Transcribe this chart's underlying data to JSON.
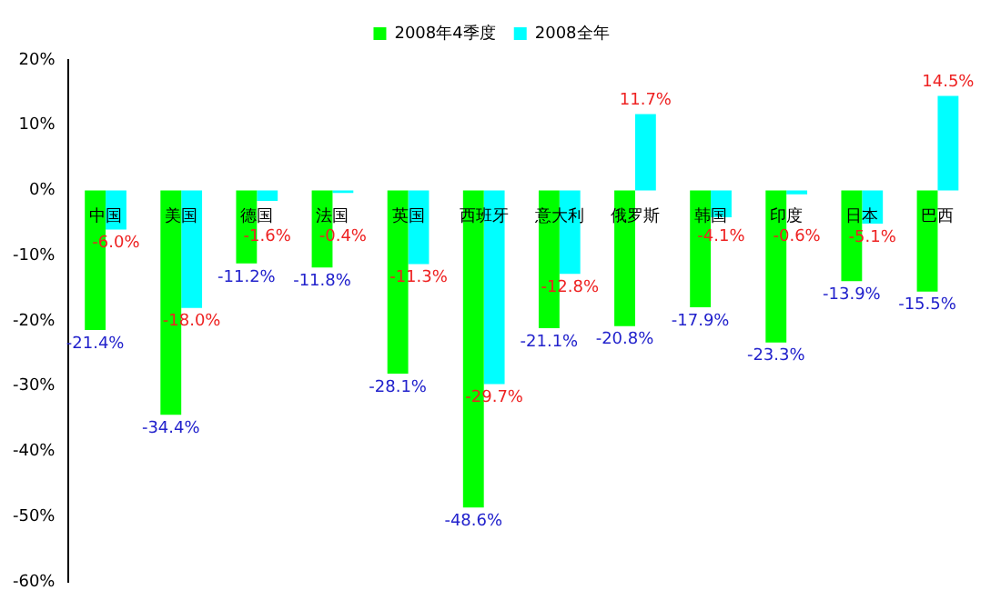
{
  "chart_data": {
    "type": "bar",
    "categories": [
      "中国",
      "美国",
      "德国",
      "法国",
      "英国",
      "西班牙",
      "意大利",
      "俄罗斯",
      "韩国",
      "印度",
      "日本",
      "巴西"
    ],
    "series": [
      {
        "name": "2008年4季度",
        "color": "#00ff00",
        "values": [
          -21.4,
          -34.4,
          -11.2,
          -11.8,
          -28.1,
          -48.6,
          -21.1,
          -20.8,
          -17.9,
          -23.3,
          -13.9,
          -15.5
        ],
        "value_labels": [
          "-21.4%",
          "-34.4%",
          "-11.2%",
          "-11.8%",
          "-28.1%",
          "-48.6%",
          "-21.1%",
          "-20.8%",
          "-17.9%",
          "-23.3%",
          "-13.9%",
          "-15.5%"
        ]
      },
      {
        "name": "2008全年",
        "color": "#00ffff",
        "values": [
          -6.0,
          -18.0,
          -1.6,
          -0.4,
          -11.3,
          -29.7,
          -12.8,
          11.7,
          -4.1,
          -0.6,
          -5.1,
          14.5
        ],
        "value_labels": [
          "-6.0%",
          "-18.0%",
          "-1.6%",
          "-0.4%",
          "-11.3%",
          "-29.7%",
          "-12.8%",
          "11.7%",
          "-4.1%",
          "-0.6%",
          "-5.1%",
          "14.5%"
        ]
      }
    ],
    "ylim": [
      -60,
      20
    ],
    "yticks": [
      {
        "value": -60,
        "label": "-60%"
      },
      {
        "value": -50,
        "label": "-50%"
      },
      {
        "value": -40,
        "label": "-40%"
      },
      {
        "value": -30,
        "label": "-30%"
      },
      {
        "value": -20,
        "label": "-20%"
      },
      {
        "value": -10,
        "label": "-10%"
      },
      {
        "value": 0,
        "label": "0%"
      },
      {
        "value": 10,
        "label": "10%"
      },
      {
        "value": 20,
        "label": "20%"
      }
    ],
    "grid": false,
    "legend": "top"
  }
}
